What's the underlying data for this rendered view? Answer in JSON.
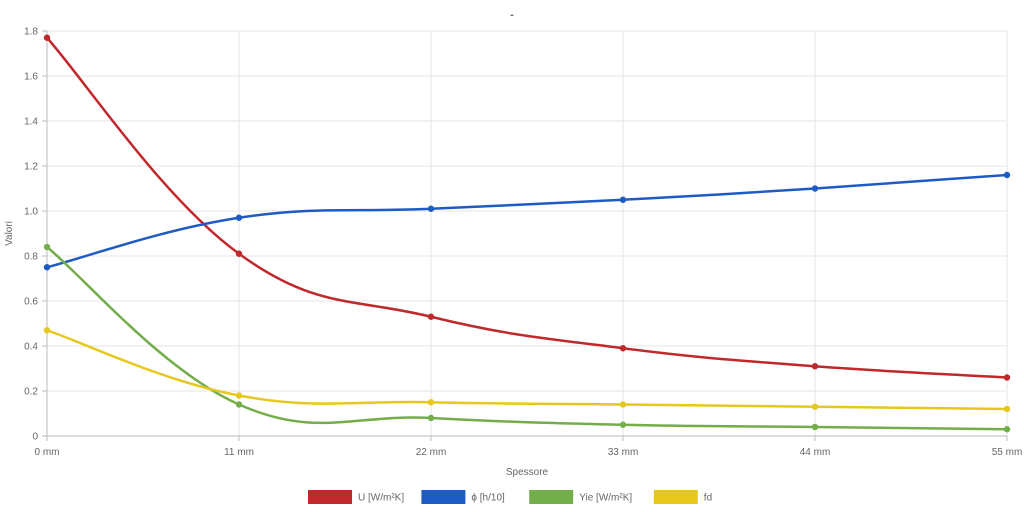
{
  "chart_data": {
    "type": "line",
    "title": "-",
    "xlabel": "Spessore",
    "ylabel": "Valori",
    "categories": [
      "0 mm",
      "11 mm",
      "22 mm",
      "33 mm",
      "44 mm",
      "55 mm"
    ],
    "ylim": [
      0,
      1.8
    ],
    "yticks": [
      "0",
      "0.2",
      "0.4",
      "0.6",
      "0.8",
      "1.0",
      "1.2",
      "1.4",
      "1.6",
      "1.8"
    ],
    "grid": true,
    "legend_position": "bottom",
    "series": [
      {
        "name": "U [W/m²K]",
        "color": "#c0282b",
        "values": [
          1.77,
          0.81,
          0.53,
          0.39,
          0.31,
          0.26
        ]
      },
      {
        "name": "ϕ [h/10]",
        "color": "#1f5bc4",
        "values": [
          0.75,
          0.97,
          1.01,
          1.05,
          1.1,
          1.16
        ]
      },
      {
        "name": "Yie [W/m²K]",
        "color": "#74ae4a",
        "values": [
          0.84,
          0.14,
          0.08,
          0.05,
          0.04,
          0.03
        ]
      },
      {
        "name": "fd",
        "color": "#e6c81c",
        "values": [
          0.47,
          0.18,
          0.15,
          0.14,
          0.13,
          0.12
        ]
      }
    ]
  }
}
